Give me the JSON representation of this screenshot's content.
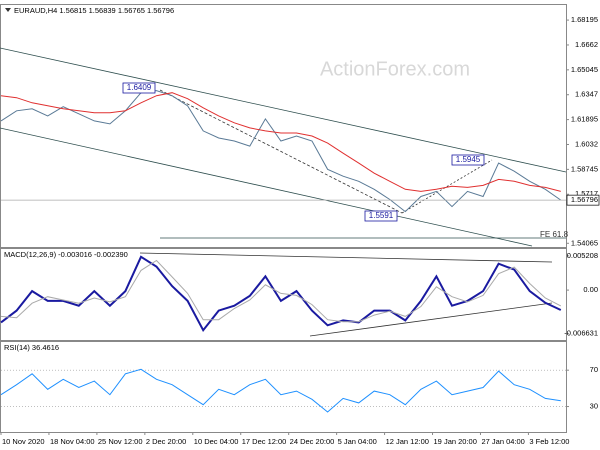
{
  "chart_data": [
    {
      "type": "line",
      "title": "EURAUD,H4  1.56815 1.56839 1.56765 1.56796",
      "watermark": "ActionForex.com",
      "annotations": [
        "1.6409",
        "1.5945",
        "1.5591",
        "FE 61.8"
      ],
      "last_price": 1.56796,
      "xlim": [
        0,
        436
      ],
      "x": [
        0,
        12,
        24,
        36,
        48,
        60,
        72,
        84,
        96,
        108,
        120,
        132,
        144,
        156,
        168,
        180,
        192,
        204,
        216,
        228,
        240,
        252,
        264,
        276,
        288,
        300,
        312,
        324,
        336,
        348,
        360,
        372,
        384,
        396,
        408,
        420,
        432
      ],
      "ylim": [
        1.5383,
        1.6915
      ],
      "yticks": [
        1.68195,
        1.6662,
        1.65045,
        1.6347,
        1.61895,
        1.6032,
        1.58745,
        1.5717,
        1.54065
      ],
      "series": [
        {
          "color": "#5a7a96",
          "values": [
            1.6181,
            1.6245,
            1.6258,
            1.6213,
            1.6271,
            1.6226,
            1.6181,
            1.6162,
            1.6245,
            1.636,
            1.6373,
            1.6341,
            1.6277,
            1.6118,
            1.6073,
            1.6054,
            1.6022,
            1.6194,
            1.6054,
            1.6086,
            1.6054,
            1.5875,
            1.5831,
            1.5799,
            1.5748,
            1.5684,
            1.5607,
            1.5703,
            1.5735,
            1.5639,
            1.5735,
            1.5703,
            1.5914,
            1.5863,
            1.5799,
            1.5748,
            1.568
          ]
        },
        {
          "color": "#e03030",
          "values": [
            1.6341,
            1.6328,
            1.6296,
            1.6277,
            1.6258,
            1.6245,
            1.6233,
            1.6233,
            1.6245,
            1.6296,
            1.6341,
            1.636,
            1.6322,
            1.6264,
            1.6213,
            1.6169,
            1.6137,
            1.6118,
            1.6105,
            1.6105,
            1.6086,
            1.6041,
            1.5977,
            1.5914,
            1.585,
            1.5799,
            1.5748,
            1.5735,
            1.5748,
            1.5767,
            1.576,
            1.5773,
            1.5811,
            1.5799,
            1.5773,
            1.576,
            1.5735
          ]
        }
      ]
    },
    {
      "type": "line",
      "title": "MACD(12,26,9) -0.003016 -0.002390",
      "xlim": [
        0,
        436
      ],
      "x": [
        0,
        12,
        24,
        36,
        48,
        60,
        72,
        84,
        96,
        108,
        120,
        132,
        144,
        156,
        168,
        180,
        192,
        204,
        216,
        228,
        240,
        252,
        264,
        276,
        288,
        300,
        312,
        324,
        336,
        348,
        360,
        372,
        384,
        396,
        408,
        420,
        432
      ],
      "ylim": [
        -0.00759,
        0.00625
      ],
      "yticks": [
        0.005208,
        {
          "value": 0,
          "label": "0.00"
        },
        -0.006631
      ],
      "series": [
        {
          "color": "#1a1aa0",
          "values": [
            -0.00491,
            -0.00312,
            -0.00015,
            -0.00164,
            -0.00164,
            -0.00238,
            -0.00015,
            -0.00238,
            -0.00015,
            0.00506,
            0.00357,
            0.0006,
            -0.00164,
            -0.0061,
            -0.00312,
            -0.00238,
            -0.00089,
            0.00208,
            -0.00164,
            -0.00015,
            -0.00312,
            -0.00536,
            -0.00461,
            -0.00491,
            -0.00312,
            -0.00312,
            -0.00461,
            -0.00164,
            0.00208,
            -0.00238,
            -0.00164,
            -0.00015,
            0.00402,
            0.00312,
            -0.00015,
            -0.00193,
            -0.00302
          ]
        },
        {
          "color": "#aaaaaa",
          "values": [
            -0.004,
            -0.0042,
            -0.002,
            -0.001,
            -0.0015,
            -0.002,
            -0.0012,
            -0.0018,
            -0.001,
            0.003,
            0.0045,
            0.002,
            -0.0005,
            -0.0045,
            -0.0045,
            -0.0028,
            -0.0015,
            0.0008,
            -0.0005,
            -0.0008,
            -0.0022,
            -0.0045,
            -0.0048,
            -0.0048,
            -0.0038,
            -0.0032,
            -0.004,
            -0.0025,
            0.0005,
            -0.001,
            -0.0018,
            -0.0008,
            0.0025,
            0.0035,
            0.001,
            -0.0012,
            -0.0024
          ]
        }
      ]
    },
    {
      "type": "line",
      "title": "RSI(14) 36.4616",
      "grid": true,
      "xlim": [
        0,
        436
      ],
      "x": [
        0,
        12,
        24,
        36,
        48,
        60,
        72,
        84,
        96,
        108,
        120,
        132,
        144,
        156,
        168,
        180,
        192,
        204,
        216,
        228,
        240,
        252,
        264,
        276,
        288,
        300,
        312,
        324,
        336,
        348,
        360,
        372,
        384,
        396,
        408,
        420,
        432
      ],
      "xticks": [
        {
          "value": 0,
          "label": "10 Nov 2020"
        },
        {
          "value": 37,
          "label": "18 Nov 04:00"
        },
        {
          "value": 74,
          "label": "25 Nov 12:00"
        },
        {
          "value": 111,
          "label": "2 Dec 20:00"
        },
        {
          "value": 148,
          "label": "10 Dec 04:00"
        },
        {
          "value": 185,
          "label": "17 Dec 12:00"
        },
        {
          "value": 222,
          "label": "24 Dec 20:00"
        },
        {
          "value": 259,
          "label": "5 Jan 04:00"
        },
        {
          "value": 296,
          "label": "12 Jan 12:00"
        },
        {
          "value": 333,
          "label": "19 Jan 20:00"
        },
        {
          "value": 370,
          "label": "27 Jan 04:00"
        },
        {
          "value": 407,
          "label": "3 Feb 12:00"
        }
      ],
      "ylim": [
        2,
        101
      ],
      "yticks": [
        30,
        70
      ],
      "series": [
        {
          "color": "#1e90ff",
          "values": [
            43,
            54,
            66,
            49,
            60,
            51,
            58,
            43,
            66,
            71,
            60,
            54,
            43,
            32,
            49,
            43,
            54,
            60,
            43,
            47,
            38,
            24,
            39,
            34,
            47,
            43,
            32,
            49,
            58,
            43,
            47,
            51,
            69,
            54,
            49,
            39,
            36.4616
          ]
        }
      ]
    }
  ]
}
